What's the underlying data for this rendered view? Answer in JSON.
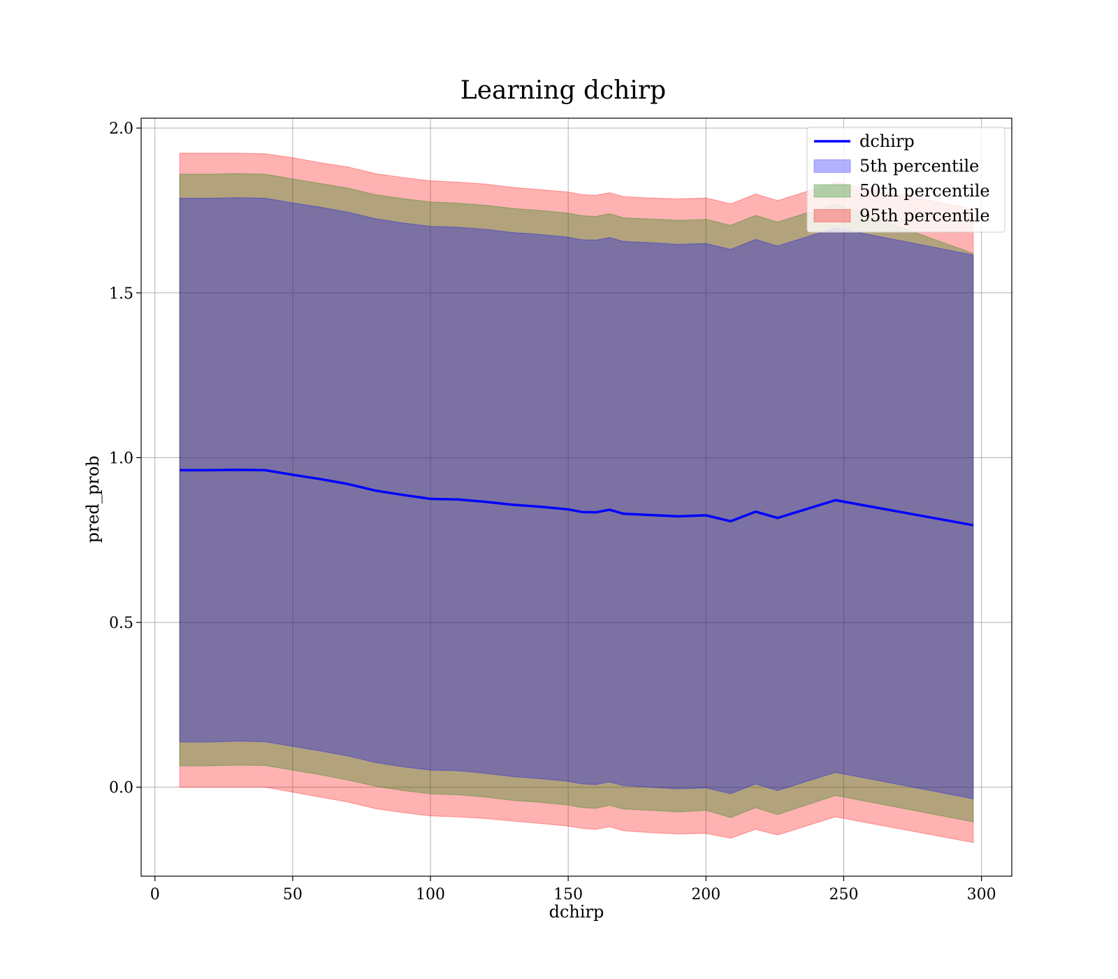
{
  "chart_data": {
    "type": "line",
    "title": "Learning dchirp",
    "xlabel": "dchirp",
    "ylabel": "pred_prob",
    "xlim": [
      -5,
      311
    ],
    "ylim": [
      -0.27,
      2.03
    ],
    "xticks": [
      0,
      50,
      100,
      150,
      200,
      250,
      300
    ],
    "yticks": [
      0.0,
      0.5,
      1.0,
      1.5,
      2.0
    ],
    "xtick_labels": [
      "0",
      "50",
      "100",
      "150",
      "200",
      "250",
      "300"
    ],
    "ytick_labels": [
      "0.0",
      "0.5",
      "1.0",
      "1.5",
      "2.0"
    ],
    "grid": true,
    "legend_position": "top-right",
    "x": [
      9,
      20,
      30,
      40,
      50,
      60,
      70,
      80,
      90,
      100,
      110,
      120,
      130,
      140,
      150,
      155,
      160,
      165,
      170,
      180,
      190,
      200,
      209,
      218,
      226,
      247,
      297
    ],
    "line": {
      "name": "dchirp",
      "color": "#0000ff",
      "values": [
        0.962,
        0.962,
        0.963,
        0.962,
        0.948,
        0.935,
        0.92,
        0.9,
        0.887,
        0.875,
        0.873,
        0.866,
        0.857,
        0.851,
        0.843,
        0.835,
        0.834,
        0.842,
        0.83,
        0.826,
        0.822,
        0.825,
        0.807,
        0.836,
        0.817,
        0.871,
        0.795
      ]
    },
    "bands": [
      {
        "name": "95th percentile",
        "color": "#ff0000",
        "opacity": 0.3,
        "lower": [
          0.0,
          0.0,
          0.0,
          0.0,
          -0.015,
          -0.03,
          -0.045,
          -0.065,
          -0.077,
          -0.087,
          -0.09,
          -0.095,
          -0.103,
          -0.11,
          -0.118,
          -0.125,
          -0.128,
          -0.12,
          -0.132,
          -0.138,
          -0.142,
          -0.14,
          -0.155,
          -0.128,
          -0.145,
          -0.09,
          -0.168
        ],
        "upper": [
          1.924,
          1.924,
          1.924,
          1.922,
          1.91,
          1.895,
          1.882,
          1.862,
          1.85,
          1.84,
          1.836,
          1.83,
          1.82,
          1.813,
          1.806,
          1.798,
          1.796,
          1.804,
          1.792,
          1.788,
          1.785,
          1.788,
          1.77,
          1.8,
          1.78,
          1.835,
          1.755
        ]
      },
      {
        "name": "50th percentile",
        "color": "#008000",
        "opacity": 0.3,
        "lower": [
          0.065,
          0.065,
          0.067,
          0.066,
          0.052,
          0.038,
          0.022,
          0.003,
          -0.01,
          -0.02,
          -0.023,
          -0.03,
          -0.04,
          -0.046,
          -0.054,
          -0.062,
          -0.064,
          -0.055,
          -0.066,
          -0.07,
          -0.075,
          -0.07,
          -0.092,
          -0.062,
          -0.083,
          -0.025,
          -0.105
        ],
        "upper": [
          1.86,
          1.86,
          1.862,
          1.86,
          1.846,
          1.832,
          1.818,
          1.798,
          1.786,
          1.776,
          1.772,
          1.766,
          1.756,
          1.75,
          1.742,
          1.734,
          1.732,
          1.74,
          1.728,
          1.724,
          1.72,
          1.723,
          1.705,
          1.735,
          1.715,
          1.77,
          1.62
        ]
      },
      {
        "name": "5th percentile",
        "color": "#0000ff",
        "opacity": 0.3,
        "lower": [
          0.137,
          0.137,
          0.14,
          0.138,
          0.124,
          0.11,
          0.095,
          0.075,
          0.062,
          0.052,
          0.05,
          0.042,
          0.032,
          0.026,
          0.018,
          0.01,
          0.008,
          0.016,
          0.005,
          0.0,
          -0.005,
          -0.002,
          -0.02,
          0.01,
          -0.01,
          0.045,
          -0.035
        ],
        "upper": [
          1.787,
          1.787,
          1.789,
          1.787,
          1.773,
          1.76,
          1.745,
          1.725,
          1.712,
          1.702,
          1.699,
          1.693,
          1.683,
          1.677,
          1.669,
          1.661,
          1.66,
          1.668,
          1.656,
          1.652,
          1.647,
          1.65,
          1.632,
          1.662,
          1.642,
          1.697,
          1.615
        ]
      }
    ],
    "legend": [
      {
        "label": "dchirp",
        "kind": "line",
        "color": "#0000ff"
      },
      {
        "label": "5th percentile",
        "kind": "patch",
        "color": "#0000ff"
      },
      {
        "label": "50th percentile",
        "kind": "patch",
        "color": "#008000"
      },
      {
        "label": "95th percentile",
        "kind": "patch",
        "color": "#ff0000"
      }
    ]
  }
}
